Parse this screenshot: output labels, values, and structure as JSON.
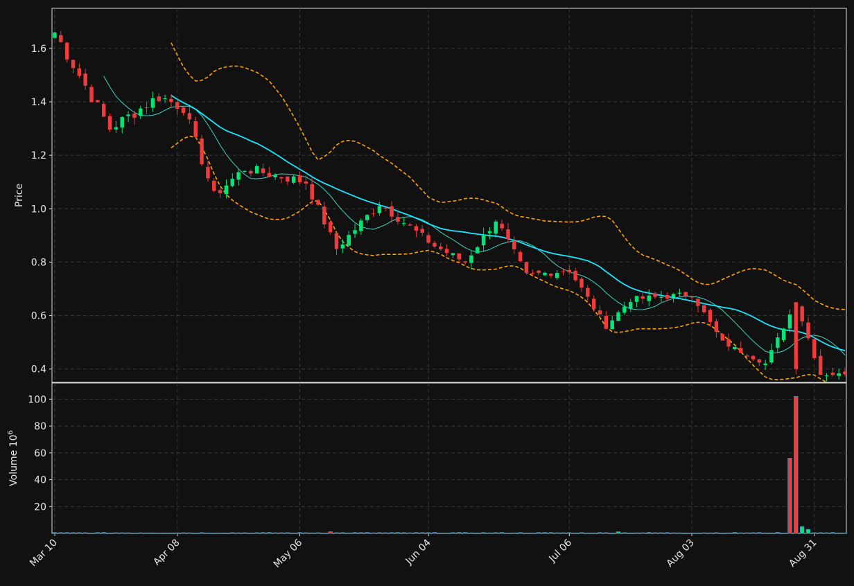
{
  "colors": {
    "background": "#111111",
    "up": "#00e676",
    "down": "#ef3b3b",
    "grid": "#3a3a3a",
    "text": "#e8e8e8",
    "ma_short": "#3fd6c6",
    "ma_long": "#19e6ff",
    "band": "#ffa500"
  },
  "chart_data": [
    {
      "type": "candlestick",
      "ylabel": "Price",
      "ylim": [
        0.35,
        1.75
      ],
      "yticks": [
        "0.4",
        "0.6",
        "0.8",
        "1.0",
        "1.2",
        "1.4",
        "1.6"
      ],
      "x_tick_labels": [
        "Mar 10",
        "Apr 08",
        "May 06",
        "Jun 04",
        "Jul 06",
        "Aug 03",
        "Aug 31"
      ],
      "grid": true,
      "overlays": [
        "short moving average (thin cyan)",
        "long moving average (bright cyan)",
        "upper/lower bands (dashed orange)"
      ],
      "ohlc_anchor_closes": [
        {
          "date": "Mar 10",
          "close": 1.66
        },
        {
          "date": "Mar 22",
          "close": 1.3
        },
        {
          "date": "Apr 02",
          "close": 1.42
        },
        {
          "date": "Apr 08",
          "close": 1.38
        },
        {
          "date": "Apr 15",
          "close": 1.05
        },
        {
          "date": "Apr 22",
          "close": 1.15
        },
        {
          "date": "May 06",
          "close": 1.1
        },
        {
          "date": "May 13",
          "close": 0.85
        },
        {
          "date": "May 22",
          "close": 1.02
        },
        {
          "date": "Jun 04",
          "close": 0.86
        },
        {
          "date": "Jun 10",
          "close": 0.8
        },
        {
          "date": "Jun 18",
          "close": 0.96
        },
        {
          "date": "Jun 25",
          "close": 0.75
        },
        {
          "date": "Jul 06",
          "close": 0.77
        },
        {
          "date": "Jul 14",
          "close": 0.56
        },
        {
          "date": "Jul 20",
          "close": 0.66
        },
        {
          "date": "Aug 03",
          "close": 0.68
        },
        {
          "date": "Aug 10",
          "close": 0.5
        },
        {
          "date": "Aug 20",
          "close": 0.42
        },
        {
          "date": "Aug 28",
          "close": 0.65
        },
        {
          "date": "Aug 31",
          "close": 0.38
        },
        {
          "date": "Sep 03",
          "close": 0.38
        }
      ]
    },
    {
      "type": "bar",
      "ylabel": "Volume  10",
      "ylabel_exponent": "6",
      "ylim": [
        0,
        112
      ],
      "yticks": [
        "20",
        "40",
        "60",
        "80",
        "100"
      ],
      "grid": true,
      "notable_values": [
        {
          "date": "Aug 28",
          "value": 56,
          "direction": "down"
        },
        {
          "date": "Aug 29",
          "value": 102,
          "direction": "down"
        },
        {
          "date": "Aug 30",
          "value": 5,
          "direction": "up"
        },
        {
          "date": "Aug 31",
          "value": 3,
          "direction": "up"
        }
      ],
      "baseline_volume": 0.5
    }
  ]
}
